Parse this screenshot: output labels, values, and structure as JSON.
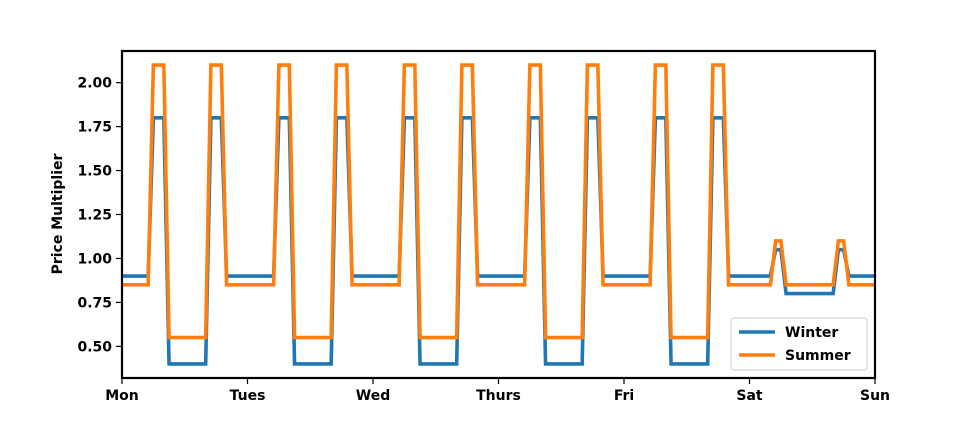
{
  "chart_data": {
    "type": "line",
    "xlabel": "",
    "ylabel": "Price Multiplier",
    "x_unit": "hours since start of week",
    "xlim": [
      0,
      144
    ],
    "ylim": [
      0.32,
      2.18
    ],
    "xticks": [
      {
        "label": "Mon",
        "value": 0
      },
      {
        "label": "Tues",
        "value": 24
      },
      {
        "label": "Wed",
        "value": 48
      },
      {
        "label": "Thurs",
        "value": 72
      },
      {
        "label": "Fri",
        "value": 96
      },
      {
        "label": "Sat",
        "value": 120
      },
      {
        "label": "Sun",
        "value": 144
      }
    ],
    "yticks": [
      {
        "label": "0.50",
        "value": 0.5
      },
      {
        "label": "0.75",
        "value": 0.75
      },
      {
        "label": "1.00",
        "value": 1.0
      },
      {
        "label": "1.25",
        "value": 1.25
      },
      {
        "label": "1.50",
        "value": 1.5
      },
      {
        "label": "1.75",
        "value": 1.75
      },
      {
        "label": "2.00",
        "value": 2.0
      }
    ],
    "legend_position": "lower-right",
    "grid": false,
    "series": [
      {
        "name": "Winter",
        "color": "#1f77b4",
        "x": [
          0,
          5,
          6,
          8,
          9,
          16,
          17,
          19,
          20,
          24,
          29,
          30,
          32,
          33,
          40,
          41,
          43,
          44,
          48,
          53,
          54,
          56,
          57,
          64,
          65,
          67,
          68,
          72,
          77,
          78,
          80,
          81,
          88,
          89,
          91,
          92,
          96,
          101,
          102,
          104,
          105,
          112,
          113,
          115,
          116,
          120,
          124,
          125,
          126,
          127,
          128,
          136,
          137,
          138,
          139,
          140,
          144
        ],
        "values": [
          0.9,
          0.9,
          1.8,
          1.8,
          0.4,
          0.4,
          1.8,
          1.8,
          0.9,
          0.9,
          0.9,
          1.8,
          1.8,
          0.4,
          0.4,
          1.8,
          1.8,
          0.9,
          0.9,
          0.9,
          1.8,
          1.8,
          0.4,
          0.4,
          1.8,
          1.8,
          0.9,
          0.9,
          0.9,
          1.8,
          1.8,
          0.4,
          0.4,
          1.8,
          1.8,
          0.9,
          0.9,
          0.9,
          1.8,
          1.8,
          0.4,
          0.4,
          1.8,
          1.8,
          0.9,
          0.9,
          0.9,
          1.05,
          1.05,
          0.8,
          0.8,
          0.8,
          1.05,
          1.05,
          0.9,
          0.9,
          0.9
        ]
      },
      {
        "name": "Summer",
        "color": "#ff7f0e",
        "x": [
          0,
          5,
          6,
          8,
          9,
          16,
          17,
          19,
          20,
          24,
          29,
          30,
          32,
          33,
          40,
          41,
          43,
          44,
          48,
          53,
          54,
          56,
          57,
          64,
          65,
          67,
          68,
          72,
          77,
          78,
          80,
          81,
          88,
          89,
          91,
          92,
          96,
          101,
          102,
          104,
          105,
          112,
          113,
          115,
          116,
          120,
          124,
          125,
          126,
          127,
          128,
          136,
          137,
          138,
          139,
          140,
          144
        ],
        "values": [
          0.85,
          0.85,
          2.1,
          2.1,
          0.55,
          0.55,
          2.1,
          2.1,
          0.85,
          0.85,
          0.85,
          2.1,
          2.1,
          0.55,
          0.55,
          2.1,
          2.1,
          0.85,
          0.85,
          0.85,
          2.1,
          2.1,
          0.55,
          0.55,
          2.1,
          2.1,
          0.85,
          0.85,
          0.85,
          2.1,
          2.1,
          0.55,
          0.55,
          2.1,
          2.1,
          0.85,
          0.85,
          0.85,
          2.1,
          2.1,
          0.55,
          0.55,
          2.1,
          2.1,
          0.85,
          0.85,
          0.85,
          1.1,
          1.1,
          0.85,
          0.85,
          0.85,
          1.1,
          1.1,
          0.85,
          0.85,
          0.85
        ]
      }
    ]
  }
}
